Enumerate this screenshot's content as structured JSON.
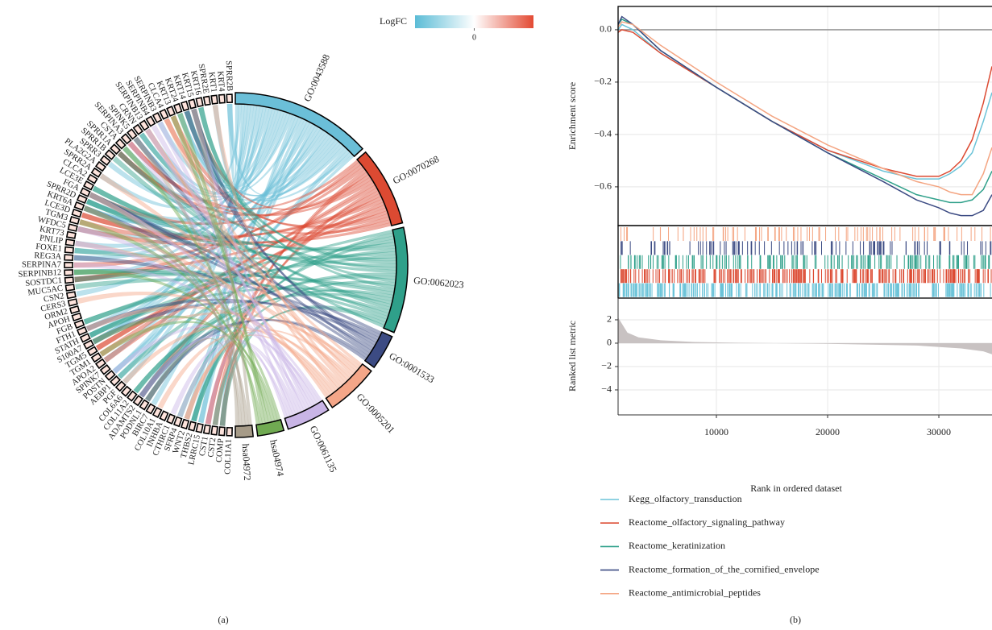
{
  "chart_data": [
    {
      "type": "chord",
      "categories": [
        "GO:0043588",
        "GO:0070268",
        "GO:0062023",
        "GO:0001533",
        "GO:0005201",
        "GO:0061135",
        "hsa04974",
        "hsa04972"
      ],
      "values": [
        16,
        9,
        12,
        4,
        6,
        5,
        3,
        2
      ],
      "colors": [
        "#6bbfd8",
        "#dc4a32",
        "#2fa08a",
        "#3c4b83",
        "#f4a688",
        "#c9b5e6",
        "#70aa52",
        "#a69b88"
      ],
      "genes": [
        "SPRR2B",
        "KRT4",
        "KRT1",
        "SPRR2E",
        "KRT16",
        "KRT15",
        "KRT14",
        "KRT24",
        "KRT13",
        "CLCA4",
        "SERPINB3",
        "SERPINB4",
        "SERPINB13",
        "CRNN",
        "SPINK5",
        "SERPINA3",
        "CSTA",
        "SPRR1A",
        "SPRR1B",
        "SPRR3",
        "PLA2G2A",
        "SPRR2A",
        "CLCA2",
        "LCE3E",
        "FGA",
        "SPRR2D",
        "KRT6A",
        "LCE3D",
        "TGM3",
        "WFDC5",
        "KRT73",
        "PNLIP",
        "FOXE1",
        "REG3A",
        "SERPINA7",
        "SERPINB12",
        "SOSTDC1",
        "MUC5AC",
        "CSN2",
        "CERS3",
        "ORM2",
        "APOH",
        "FGB",
        "FTH1",
        "STATH",
        "S100A7",
        "TGM5",
        "TGM1",
        "APOA2",
        "SPINK7",
        "POSTN",
        "AEBP1",
        "PGF",
        "COL6A6",
        "COL11A2",
        "ADAMTS2",
        "PODNL1",
        "BIRC7",
        "COL10A1",
        "INHBA",
        "CTHRC1",
        "SFRP4",
        "WNT2",
        "THBS2",
        "LRRC15",
        "CST1",
        "CST2",
        "COMP",
        "COL11A1"
      ],
      "legend": {
        "title": "LogFC",
        "lim": [
          -5,
          5
        ],
        "ticks": [
          0
        ],
        "colors": [
          "#5bbcd6",
          "#ffffff",
          "#e34a33"
        ]
      }
    },
    {
      "type": "line",
      "ylabel": "Enrichment score",
      "xlabel": "Rank in ordered dataset",
      "x": [
        1160,
        1500,
        2500,
        5000,
        10000,
        15000,
        20000,
        25000,
        28000,
        30000,
        31000,
        32000,
        33000,
        34000,
        34780
      ],
      "xlim": [
        1160,
        34780
      ],
      "xticks": [
        10000,
        20000,
        30000
      ],
      "ylim": [
        -0.748,
        0.089
      ],
      "yticks": [
        {
          "value": 0,
          "label": "0.0"
        },
        {
          "value": -0.2,
          "label": "−0.2"
        },
        {
          "value": -0.4,
          "label": "−0.4"
        },
        {
          "value": -0.6,
          "label": "−0.6"
        }
      ],
      "grid": true,
      "series": [
        {
          "name": "Kegg_olfactory_transduction",
          "color": "#6bc3d8",
          "values": [
            0.0,
            0.02,
            0.0,
            -0.09,
            -0.22,
            -0.35,
            -0.46,
            -0.54,
            -0.57,
            -0.57,
            -0.55,
            -0.52,
            -0.47,
            -0.35,
            -0.24
          ]
        },
        {
          "name": "Reactome_olfactory_signaling_pathway",
          "color": "#dc4a32",
          "values": [
            -0.01,
            0.0,
            -0.01,
            -0.09,
            -0.22,
            -0.35,
            -0.46,
            -0.53,
            -0.56,
            -0.56,
            -0.54,
            -0.5,
            -0.42,
            -0.28,
            -0.14
          ]
        },
        {
          "name": "Reactome_keratinization",
          "color": "#2fa08a",
          "values": [
            0.02,
            0.04,
            0.02,
            -0.08,
            -0.22,
            -0.35,
            -0.47,
            -0.57,
            -0.63,
            -0.65,
            -0.66,
            -0.66,
            -0.65,
            -0.61,
            -0.54
          ]
        },
        {
          "name": "Reactome_formation_of_the_cornified_envelope",
          "color": "#3c4b83",
          "values": [
            0.02,
            0.05,
            0.02,
            -0.08,
            -0.22,
            -0.35,
            -0.47,
            -0.58,
            -0.65,
            -0.68,
            -0.7,
            -0.71,
            -0.71,
            -0.69,
            -0.63
          ]
        },
        {
          "name": "Reactome_antimicrobial_peptides",
          "color": "#f4a582",
          "values": [
            0.01,
            0.03,
            0.02,
            -0.06,
            -0.2,
            -0.33,
            -0.44,
            -0.53,
            -0.58,
            -0.6,
            -0.62,
            -0.63,
            -0.63,
            -0.55,
            -0.45
          ]
        }
      ],
      "metric": {
        "ylabel": "Ranked list metric",
        "x": [
          1160,
          2000,
          3000,
          5000,
          8000,
          12000,
          20000,
          28000,
          32000,
          34000,
          34780
        ],
        "values": [
          2.2,
          0.9,
          0.5,
          0.25,
          0.1,
          0.03,
          -0.05,
          -0.2,
          -0.45,
          -0.7,
          -0.95
        ],
        "ylim": [
          -6.14,
          3.86
        ],
        "yticks": [
          2,
          0,
          {
            "value": -2,
            "label": "−2"
          },
          {
            "value": -4,
            "label": "−4"
          }
        ],
        "color": "#c8c2c2"
      }
    }
  ],
  "captions": [
    "(a)",
    "(b)"
  ]
}
